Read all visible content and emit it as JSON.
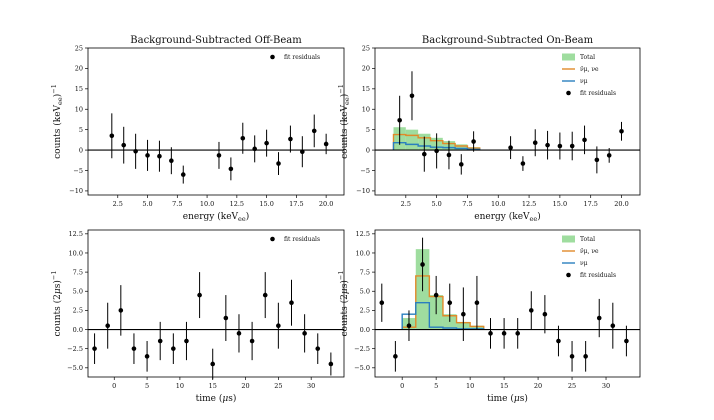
{
  "chart_data": [
    {
      "type": "scatter",
      "title": "Background-Subtracted Off-Beam",
      "xlabel": "energy (keV",
      "xlabel_sub": "ee",
      "xlabel_end": ")",
      "ylabel": "counts (keV",
      "ylabel_sub": "ee",
      "ylabel_end": ")",
      "ylabel_sup": "−1",
      "xlim": [
        0.0,
        21.5
      ],
      "ylim": [
        -11,
        25
      ],
      "xticks": [
        2.5,
        5.0,
        7.5,
        10.0,
        12.5,
        15.0,
        17.5,
        20.0
      ],
      "xtick_labels": [
        "2.5",
        "5.0",
        "7.5",
        "10.0",
        "12.5",
        "15.0",
        "17.5",
        "20.0"
      ],
      "yticks": [
        -10,
        -5,
        0,
        5,
        10,
        15,
        20,
        25
      ],
      "ytick_labels": [
        "−10",
        "−5",
        "0",
        "5",
        "10",
        "15",
        "20",
        "25"
      ],
      "hline": 0,
      "legend_position": "top-right",
      "legend": [
        {
          "kind": "point",
          "label": "fit residuals",
          "color": "#000000"
        }
      ],
      "series": [
        {
          "name": "fit residuals",
          "kind": "errorbar",
          "color": "#000000",
          "x": [
            2.0,
            3.0,
            4.0,
            5.0,
            6.0,
            7.0,
            8.0,
            11.0,
            12.0,
            13.0,
            14.0,
            15.0,
            16.0,
            17.0,
            18.0,
            19.0,
            20.0
          ],
          "y": [
            3.5,
            1.2,
            -0.3,
            -1.3,
            -1.5,
            -2.6,
            -6.0,
            -1.3,
            -4.6,
            2.9,
            0.3,
            1.7,
            -3.3,
            2.7,
            -0.4,
            4.7,
            1.5
          ],
          "err": [
            5.5,
            4.5,
            4.3,
            3.8,
            3.8,
            3.3,
            2.2,
            3.3,
            2.8,
            3.8,
            3.3,
            3.3,
            2.8,
            3.3,
            3.8,
            4.0,
            2.5
          ]
        }
      ]
    },
    {
      "type": "scatter",
      "title": "Background-Subtracted On-Beam",
      "xlabel": "energy (keV",
      "xlabel_sub": "ee",
      "xlabel_end": ")",
      "ylabel": "counts (keV",
      "ylabel_sub": "ee",
      "ylabel_end": ")",
      "ylabel_sup": "−1",
      "xlim": [
        0.0,
        21.5
      ],
      "ylim": [
        -11,
        25
      ],
      "xticks": [
        2.5,
        5.0,
        7.5,
        10.0,
        12.5,
        15.0,
        17.5,
        20.0
      ],
      "xtick_labels": [
        "2.5",
        "5.0",
        "7.5",
        "10.0",
        "12.5",
        "15.0",
        "17.5",
        "20.0"
      ],
      "yticks": [
        -10,
        -5,
        0,
        5,
        10,
        15,
        20,
        25
      ],
      "ytick_labels": [
        "−10",
        "−5",
        "0",
        "5",
        "10",
        "15",
        "20",
        "25"
      ],
      "hline": 0,
      "legend_position": "top-right",
      "legend": [
        {
          "kind": "patch",
          "label": "Total",
          "color": "#7fd17f"
        },
        {
          "kind": "line",
          "label": "ν̄μ, νe",
          "color": "#e08a2a"
        },
        {
          "kind": "line",
          "label": "νμ",
          "color": "#2a7fbf"
        },
        {
          "kind": "point",
          "label": "fit residuals",
          "color": "#000000"
        }
      ],
      "histograms": {
        "bin_edges": [
          1.5,
          2.5,
          3.5,
          4.5,
          5.5,
          6.5,
          7.5,
          8.5
        ],
        "total": [
          5.6,
          5.0,
          4.0,
          3.0,
          2.2,
          1.4,
          0.7
        ],
        "anti_numu_nue": [
          3.8,
          3.6,
          3.0,
          2.3,
          1.6,
          1.0,
          0.5
        ],
        "numu": [
          1.8,
          1.4,
          1.0,
          0.7,
          0.6,
          0.4,
          0.2
        ]
      },
      "series": [
        {
          "name": "fit residuals",
          "kind": "errorbar",
          "color": "#000000",
          "x": [
            2.0,
            3.0,
            4.0,
            5.0,
            6.0,
            7.0,
            8.0,
            11.0,
            12.0,
            13.0,
            14.0,
            15.0,
            16.0,
            17.0,
            18.0,
            19.0,
            20.0
          ],
          "y": [
            7.3,
            13.3,
            -1.0,
            -0.2,
            -1.2,
            -3.5,
            2.1,
            0.6,
            -3.3,
            1.8,
            1.2,
            1.0,
            1.0,
            2.5,
            -2.4,
            -1.3,
            4.6
          ],
          "err": [
            6.0,
            6.0,
            4.3,
            4.3,
            3.5,
            2.5,
            2.5,
            2.8,
            1.8,
            3.3,
            3.5,
            3.3,
            3.5,
            3.5,
            3.3,
            1.8,
            2.3
          ]
        }
      ]
    },
    {
      "type": "scatter",
      "title": "",
      "xlabel": "time (",
      "xlabel_mu": "μ",
      "xlabel_end": "s)",
      "ylabel": "counts (2",
      "ylabel_mu": "μ",
      "ylabel_end": "s)",
      "ylabel_sup": "−1",
      "xlim": [
        -4,
        35
      ],
      "ylim": [
        -6.2,
        13
      ],
      "xticks": [
        0,
        5,
        10,
        15,
        20,
        25,
        30
      ],
      "xtick_labels": [
        "0",
        "5",
        "10",
        "15",
        "20",
        "25",
        "30"
      ],
      "yticks": [
        -5.0,
        -2.5,
        0.0,
        2.5,
        5.0,
        7.5,
        10.0,
        12.5
      ],
      "ytick_labels": [
        "−5.0",
        "−2.5",
        "0.0",
        "2.5",
        "5.0",
        "7.5",
        "10.0",
        "12.5"
      ],
      "hline": 0,
      "legend_position": "top-right",
      "legend": [
        {
          "kind": "point",
          "label": "fit residuals",
          "color": "#000000"
        }
      ],
      "series": [
        {
          "name": "fit residuals",
          "kind": "errorbar",
          "color": "#000000",
          "x": [
            -3,
            -1,
            1,
            3,
            5,
            7,
            9,
            11,
            13,
            15,
            17,
            19,
            21,
            23,
            25,
            27,
            29,
            31,
            33
          ],
          "y": [
            -2.5,
            0.5,
            2.5,
            -2.5,
            -3.5,
            -1.5,
            -2.5,
            -1.5,
            4.5,
            -4.5,
            1.5,
            -0.5,
            -1.5,
            4.5,
            0.5,
            3.5,
            -0.5,
            -2.5,
            -4.5
          ],
          "err": [
            2.0,
            3.0,
            3.3,
            2.0,
            2.0,
            2.5,
            2.0,
            2.5,
            3.0,
            2.0,
            3.0,
            2.5,
            2.5,
            3.0,
            3.0,
            3.0,
            2.5,
            2.0,
            1.5
          ]
        }
      ]
    },
    {
      "type": "scatter",
      "title": "",
      "xlabel": "time (",
      "xlabel_mu": "μ",
      "xlabel_end": "s)",
      "ylabel": "counts (2",
      "ylabel_mu": "μ",
      "ylabel_end": "s)",
      "ylabel_sup": "−1",
      "xlim": [
        -4,
        35
      ],
      "ylim": [
        -6.2,
        13
      ],
      "xticks": [
        0,
        5,
        10,
        15,
        20,
        25,
        30
      ],
      "xtick_labels": [
        "0",
        "5",
        "10",
        "15",
        "20",
        "25",
        "30"
      ],
      "yticks": [
        -5.0,
        -2.5,
        0.0,
        2.5,
        5.0,
        7.5,
        10.0,
        12.5
      ],
      "ytick_labels": [
        "−5.0",
        "−2.5",
        "0.0",
        "2.5",
        "5.0",
        "7.5",
        "10.0",
        "12.5"
      ],
      "hline": 0,
      "legend_position": "top-right",
      "legend": [
        {
          "kind": "patch",
          "label": "Total",
          "color": "#7fd17f"
        },
        {
          "kind": "line",
          "label": "ν̄μ, νe",
          "color": "#e08a2a"
        },
        {
          "kind": "line",
          "label": "νμ",
          "color": "#2a7fbf"
        },
        {
          "kind": "point",
          "label": "fit residuals",
          "color": "#000000"
        }
      ],
      "histograms": {
        "bin_edges": [
          0,
          2,
          4,
          6,
          8,
          10,
          12
        ],
        "total": [
          1.5,
          10.5,
          4.5,
          2.0,
          1.0,
          0.5
        ],
        "anti_numu_nue": [
          0.3,
          7.0,
          4.3,
          1.8,
          0.9,
          0.4
        ],
        "numu": [
          2.0,
          3.5,
          0.3,
          0.2,
          0.1,
          0.1
        ]
      },
      "series": [
        {
          "name": "fit residuals",
          "kind": "errorbar",
          "color": "#000000",
          "x": [
            -3,
            -1,
            1,
            3,
            5,
            7,
            9,
            11,
            13,
            15,
            17,
            19,
            21,
            23,
            25,
            27,
            29,
            31,
            33
          ],
          "y": [
            3.5,
            -3.5,
            0.5,
            8.5,
            4.5,
            3.5,
            2.0,
            3.5,
            -0.5,
            -0.5,
            -0.5,
            2.5,
            2.0,
            -1.5,
            -3.5,
            -3.5,
            1.5,
            0.5,
            -1.5
          ],
          "err": [
            2.5,
            2.0,
            2.0,
            3.5,
            2.5,
            2.5,
            3.5,
            3.5,
            2.0,
            2.0,
            2.0,
            2.5,
            2.5,
            2.0,
            2.0,
            2.0,
            2.5,
            3.0,
            2.0
          ]
        }
      ]
    }
  ]
}
